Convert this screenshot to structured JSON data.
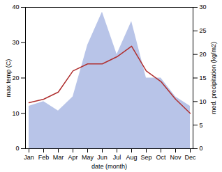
{
  "chart_data": {
    "type": "line",
    "categories": [
      "Jan",
      "Feb",
      "Mar",
      "Apr",
      "May",
      "Jun",
      "Jul",
      "Aug",
      "Sep",
      "Oct",
      "Nov",
      "Dec"
    ],
    "xlabel": "date (month)",
    "ylabel": "max temp (C)",
    "y2label": "med. precipitation (kg/m2)",
    "ylim": [
      0,
      40
    ],
    "yticks": [
      0,
      10,
      20,
      30,
      40
    ],
    "y2lim": [
      0,
      30
    ],
    "y2ticks": [
      0,
      5,
      10,
      15,
      20,
      25,
      30
    ],
    "grid": false,
    "series": [
      {
        "type": "area",
        "axis": "y2",
        "color": "#b8c4e8",
        "values": [
          9,
          10,
          8,
          11,
          22,
          29,
          20,
          27,
          15,
          15,
          11,
          9
        ]
      },
      {
        "type": "line",
        "color": "#b03030",
        "values": [
          13,
          14,
          16,
          22,
          24,
          24,
          26,
          29,
          22,
          19,
          14,
          10
        ]
      }
    ]
  }
}
